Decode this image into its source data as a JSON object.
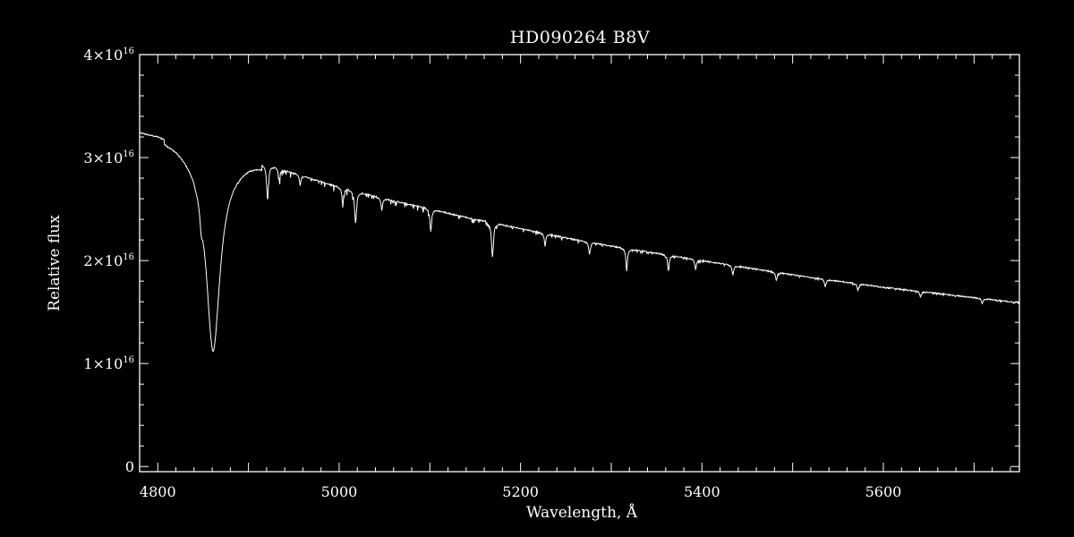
{
  "chart_data": {
    "type": "line",
    "title": "HD090264   B8V",
    "xlabel": "Wavelength, Å",
    "ylabel": "Relative flux",
    "xlim": [
      4780,
      5750
    ],
    "ylim": [
      -500000000000000.0,
      4e+16
    ],
    "x_ticks": [
      4800,
      5000,
      5200,
      5400,
      5600
    ],
    "x_tick_labels": [
      "4800",
      "5000",
      "5200",
      "5400",
      "5600"
    ],
    "y_ticks": [
      0,
      1e+16,
      2e+16,
      3e+16,
      4e+16
    ],
    "y_tick_labels": [
      {
        "mantissa": "0",
        "exponent": ""
      },
      {
        "mantissa": "1×10",
        "exponent": "16"
      },
      {
        "mantissa": "2×10",
        "exponent": "16"
      },
      {
        "mantissa": "3×10",
        "exponent": "16"
      },
      {
        "mantissa": "4×10",
        "exponent": "16"
      }
    ],
    "grid": false,
    "legend": "none",
    "series": [
      {
        "color": "#ffffff",
        "continuum": {
          "x": [
            4780,
            4800,
            4820,
            4840,
            4850,
            4870,
            4890,
            4900,
            4920,
            4950,
            5000,
            5050,
            5100,
            5150,
            5200,
            5250,
            5300,
            5350,
            5400,
            5450,
            5500,
            5550,
            5600,
            5650,
            5700,
            5750
          ],
          "y": [
            3.24e+16,
            3.2e+16,
            3.13e+16,
            3.02e+16,
            2.95e+16,
            2.9e+16,
            2.93e+16,
            2.95e+16,
            2.93e+16,
            2.85e+16,
            2.71e+16,
            2.6e+16,
            2.5e+16,
            2.4e+16,
            2.31e+16,
            2.22e+16,
            2.14e+16,
            2.07e+16,
            2e+16,
            1.93e+16,
            1.86e+16,
            1.8e+16,
            1.74e+16,
            1.69e+16,
            1.64e+16,
            1.59e+16
          ]
        },
        "absorption_lines": [
          {
            "x": 4861,
            "depth": 1.8e+16,
            "width": 9
          },
          {
            "x": 4848,
            "depth": 1500000000000000.0,
            "width": 1.5
          },
          {
            "x": 4921,
            "depth": 3300000000000000.0,
            "width": 1.2
          },
          {
            "x": 4934,
            "depth": 1200000000000000.0,
            "width": 1.0
          },
          {
            "x": 4957,
            "depth": 1000000000000000.0,
            "width": 1.0
          },
          {
            "x": 5004,
            "depth": 1600000000000000.0,
            "width": 1.0
          },
          {
            "x": 5018,
            "depth": 3000000000000000.0,
            "width": 1.2
          },
          {
            "x": 5047,
            "depth": 1200000000000000.0,
            "width": 1.0
          },
          {
            "x": 5101,
            "depth": 2200000000000000.0,
            "width": 1.0
          },
          {
            "x": 5169,
            "depth": 3300000000000000.0,
            "width": 1.2
          },
          {
            "x": 5227,
            "depth": 1200000000000000.0,
            "width": 1.0
          },
          {
            "x": 5276,
            "depth": 1200000000000000.0,
            "width": 1.0
          },
          {
            "x": 5317,
            "depth": 2200000000000000.0,
            "width": 1.0
          },
          {
            "x": 5363,
            "depth": 1500000000000000.0,
            "width": 1.0
          },
          {
            "x": 5393,
            "depth": 1000000000000000.0,
            "width": 1.0
          },
          {
            "x": 5434,
            "depth": 900000000000000.0,
            "width": 1.0
          },
          {
            "x": 5482,
            "depth": 800000000000000.0,
            "width": 1.0
          },
          {
            "x": 5536,
            "depth": 700000000000000.0,
            "width": 1.0
          },
          {
            "x": 5572,
            "depth": 600000000000000.0,
            "width": 1.0
          },
          {
            "x": 5641,
            "depth": 500000000000000.0,
            "width": 1.0
          },
          {
            "x": 5709,
            "depth": 500000000000000.0,
            "width": 1.0
          }
        ]
      }
    ]
  }
}
